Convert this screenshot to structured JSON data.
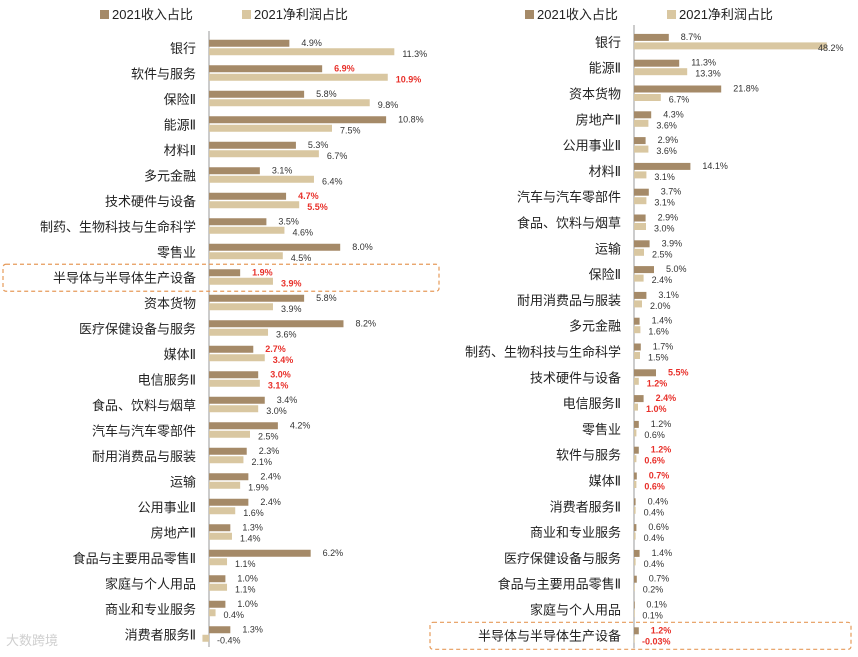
{
  "colors": {
    "revenue": "#A58A68",
    "profit": "#D9C7A1",
    "highlight_text": "#E8302A",
    "highlight_box": "#E69B5B",
    "label": "#222222",
    "value": "#333333"
  },
  "watermark": "大数跨境",
  "chart_data": [
    {
      "type": "bar",
      "orientation": "horizontal",
      "title": "",
      "legend": [
        "2021收入占比",
        "2021净利润占比"
      ],
      "legend_position": "top",
      "xlim": [
        -0.4,
        11.3
      ],
      "series": [
        {
          "name": "2021收入占比",
          "values": [
            4.9,
            6.9,
            5.8,
            10.8,
            5.3,
            3.1,
            4.7,
            3.5,
            8.0,
            1.9,
            5.8,
            8.2,
            2.7,
            3.0,
            3.4,
            4.2,
            2.3,
            2.4,
            2.4,
            1.3,
            6.2,
            1.0,
            1.0,
            1.3
          ]
        },
        {
          "name": "2021净利润占比",
          "values": [
            11.3,
            10.9,
            9.8,
            7.5,
            6.7,
            6.4,
            5.5,
            4.6,
            4.5,
            3.9,
            3.9,
            3.6,
            3.4,
            3.1,
            3.0,
            2.5,
            2.1,
            1.9,
            1.6,
            1.4,
            1.1,
            1.1,
            0.4,
            -0.4
          ]
        }
      ],
      "categories": [
        "银行",
        "软件与服务",
        "保险Ⅱ",
        "能源Ⅱ",
        "材料Ⅱ",
        "多元金融",
        "技术硬件与设备",
        "制药、生物科技与生命科学",
        "零售业",
        "半导体与半导体生产设备",
        "资本货物",
        "医疗保健设备与服务",
        "媒体Ⅱ",
        "电信服务Ⅱ",
        "食品、饮料与烟草",
        "汽车与汽车零部件",
        "耐用消费品与服装",
        "运输",
        "公用事业Ⅱ",
        "房地产Ⅱ",
        "食品与主要用品零售Ⅱ",
        "家庭与个人用品",
        "商业和专业服务",
        "消费者服务Ⅱ"
      ],
      "revenue_labels": [
        "4.9%",
        "6.9%",
        "5.8%",
        "10.8%",
        "5.3%",
        "3.1%",
        "4.7%",
        "3.5%",
        "8.0%",
        "1.9%",
        "5.8%",
        "8.2%",
        "2.7%",
        "3.0%",
        "3.4%",
        "4.2%",
        "2.3%",
        "2.4%",
        "2.4%",
        "1.3%",
        "6.2%",
        "1.0%",
        "1.0%",
        "1.3%"
      ],
      "profit_labels": [
        "11.3%",
        "10.9%",
        "9.8%",
        "7.5%",
        "6.7%",
        "6.4%",
        "5.5%",
        "4.6%",
        "4.5%",
        "3.9%",
        "3.9%",
        "3.6%",
        "3.4%",
        "3.1%",
        "3.0%",
        "2.5%",
        "2.1%",
        "1.9%",
        "1.6%",
        "1.4%",
        "1.1%",
        "1.1%",
        "0.4%",
        "-0.4%"
      ],
      "highlighted_labels": [
        "软件与服务",
        "技术硬件与设备",
        "半导体与半导体生产设备",
        "媒体Ⅱ",
        "电信服务Ⅱ"
      ],
      "boxed_category": "半导体与半导体生产设备"
    },
    {
      "type": "bar",
      "orientation": "horizontal",
      "title": "",
      "legend": [
        "2021收入占比",
        "2021净利润占比"
      ],
      "legend_position": "top",
      "xlim": [
        -0.03,
        48.2
      ],
      "series": [
        {
          "name": "2021收入占比",
          "values": [
            8.7,
            11.3,
            21.8,
            4.3,
            2.9,
            14.1,
            3.7,
            2.9,
            3.9,
            5.0,
            3.1,
            1.4,
            1.7,
            5.5,
            2.4,
            1.2,
            1.2,
            0.7,
            0.4,
            0.6,
            1.4,
            0.7,
            0.1,
            1.2
          ]
        },
        {
          "name": "2021净利润占比",
          "values": [
            48.2,
            13.3,
            6.7,
            3.6,
            3.6,
            3.1,
            3.1,
            3.0,
            2.5,
            2.4,
            2.0,
            1.6,
            1.5,
            1.2,
            1.0,
            0.6,
            0.6,
            0.6,
            0.4,
            0.4,
            0.4,
            0.2,
            0.1,
            -0.03
          ]
        }
      ],
      "categories": [
        "银行",
        "能源Ⅱ",
        "资本货物",
        "房地产Ⅱ",
        "公用事业Ⅱ",
        "材料Ⅱ",
        "汽车与汽车零部件",
        "食品、饮料与烟草",
        "运输",
        "保险Ⅱ",
        "耐用消费品与服装",
        "多元金融",
        "制药、生物科技与生命科学",
        "技术硬件与设备",
        "电信服务Ⅱ",
        "零售业",
        "软件与服务",
        "媒体Ⅱ",
        "消费者服务Ⅱ",
        "商业和专业服务",
        "医疗保健设备与服务",
        "食品与主要用品零售Ⅱ",
        "家庭与个人用品",
        "半导体与半导体生产设备"
      ],
      "revenue_labels": [
        "8.7%",
        "11.3%",
        "21.8%",
        "4.3%",
        "2.9%",
        "14.1%",
        "3.7%",
        "2.9%",
        "3.9%",
        "5.0%",
        "3.1%",
        "1.4%",
        "1.7%",
        "5.5%",
        "2.4%",
        "1.2%",
        "1.2%",
        "0.7%",
        "0.4%",
        "0.6%",
        "1.4%",
        "0.7%",
        "0.1%",
        "1.2%"
      ],
      "profit_labels": [
        "48.2%",
        "13.3%",
        "6.7%",
        "3.6%",
        "3.6%",
        "3.1%",
        "3.1%",
        "3.0%",
        "2.5%",
        "2.4%",
        "2.0%",
        "1.6%",
        "1.5%",
        "1.2%",
        "1.0%",
        "0.6%",
        "0.6%",
        "0.6%",
        "0.4%",
        "0.4%",
        "0.4%",
        "0.2%",
        "0.1%",
        "-0.03%"
      ],
      "highlighted_labels": [
        "技术硬件与设备",
        "电信服务Ⅱ",
        "软件与服务",
        "媒体Ⅱ",
        "半导体与半导体生产设备"
      ],
      "boxed_category": "半导体与半导体生产设备"
    }
  ]
}
